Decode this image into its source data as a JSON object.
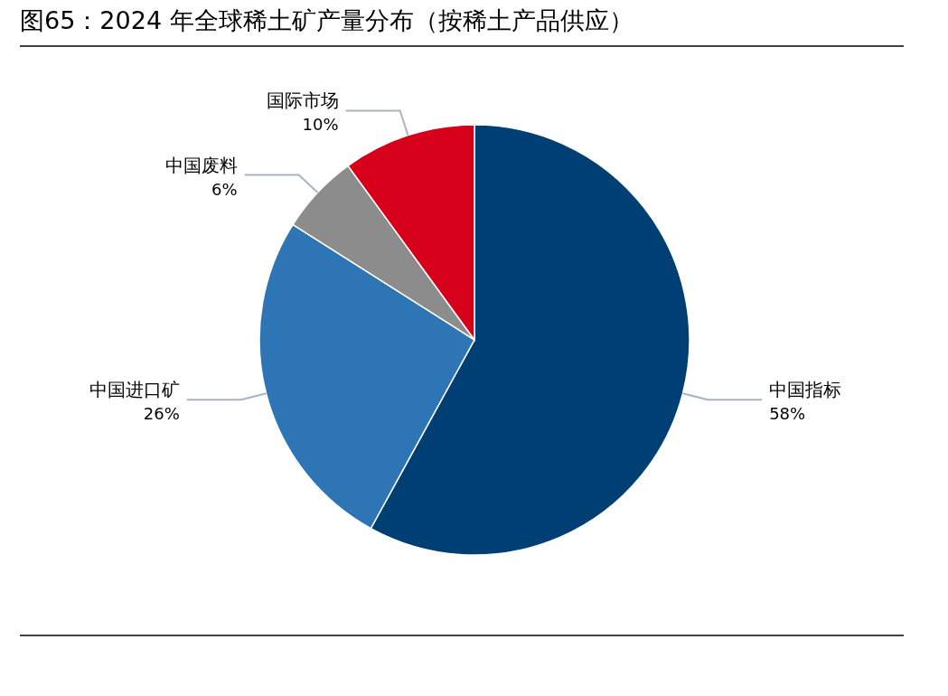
{
  "chart_data": {
    "type": "pie",
    "title": "图65：2024 年全球稀土矿产量分布（按稀土产品供应）",
    "categories": [
      "中国指标",
      "中国进口矿",
      "中国废料",
      "国际市场"
    ],
    "values": [
      58,
      26,
      6,
      10
    ],
    "colors": [
      "#003f73",
      "#2e75b6",
      "#8c8c8c",
      "#d7001a"
    ],
    "value_labels": [
      "58%",
      "26%",
      "6%",
      "10%"
    ]
  }
}
